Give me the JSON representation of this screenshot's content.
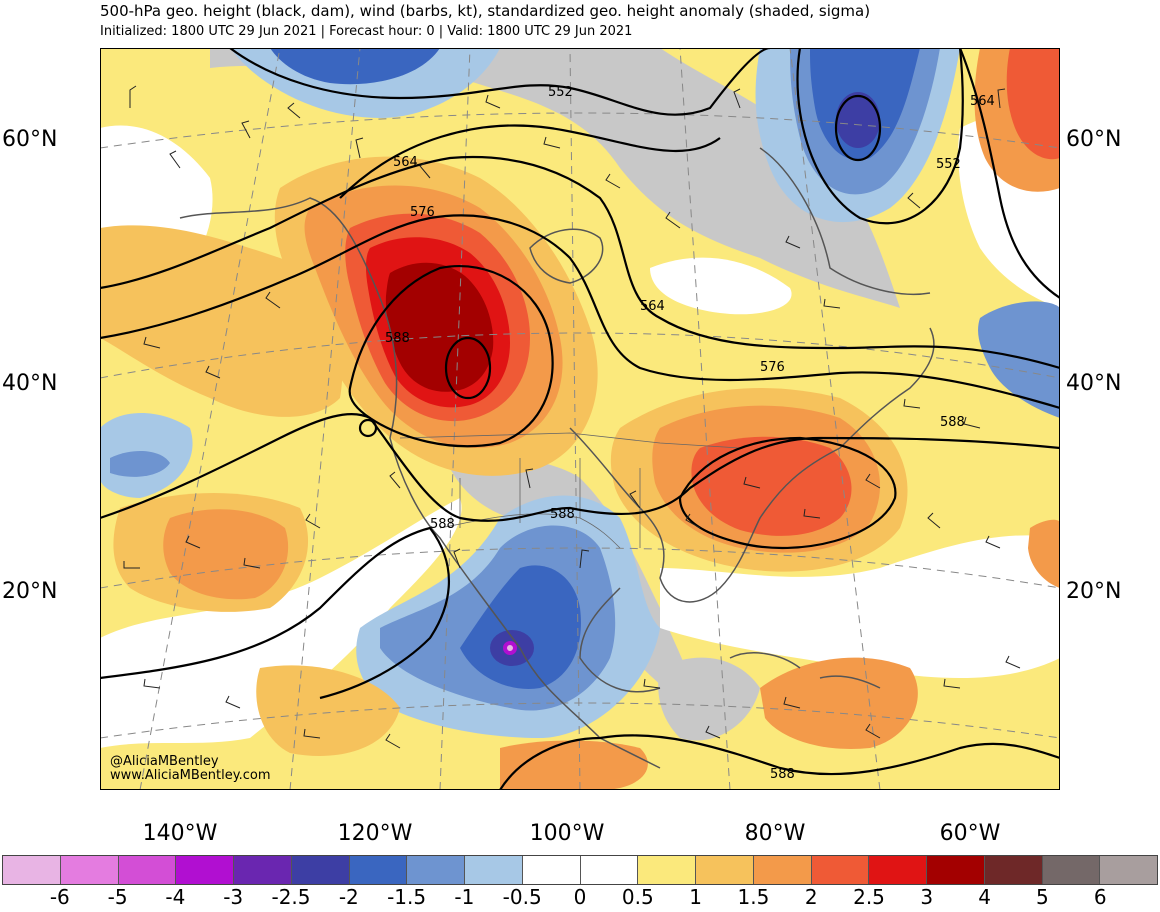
{
  "title": "500-hPa geo. height (black, dam), wind (barbs, kt), standardized geo. height anomaly (shaded, sigma)",
  "subtitle": "Initialized: 1800 UTC 29 Jun 2021 | Forecast hour: 0 | Valid: 1800 UTC 29 Jun 2021",
  "lat_labels": [
    "60°N",
    "40°N",
    "20°N"
  ],
  "lon_labels": [
    "140°W",
    "120°W",
    "100°W",
    "80°W",
    "60°W"
  ],
  "contour_labels": [
    "552",
    "552",
    "564",
    "564",
    "564",
    "576",
    "576",
    "588",
    "588",
    "588",
    "588",
    "588"
  ],
  "credit": {
    "handle": "@AliciaMBentley",
    "site": "www.AliciaMBentley.com"
  },
  "colorbar": {
    "colors": [
      "#e8b4e4",
      "#e47ce0",
      "#d34ed6",
      "#b10fd1",
      "#6a26b0",
      "#3d3ea4",
      "#3a66c0",
      "#6e94d0",
      "#a7c8e6",
      "#ffffff",
      "#ffffff",
      "#fbe97c",
      "#f6c25c",
      "#f39a4a",
      "#ef5a36",
      "#e01414",
      "#a30000",
      "#6e2828",
      "#746868",
      "#a89e9e"
    ],
    "ticks": [
      "-6",
      "-5",
      "-4",
      "-3",
      "-2.5",
      "-2",
      "-1.5",
      "-1",
      "-0.5",
      "0",
      "0.5",
      "1",
      "1.5",
      "2",
      "2.5",
      "3",
      "4",
      "5",
      "6"
    ]
  }
}
